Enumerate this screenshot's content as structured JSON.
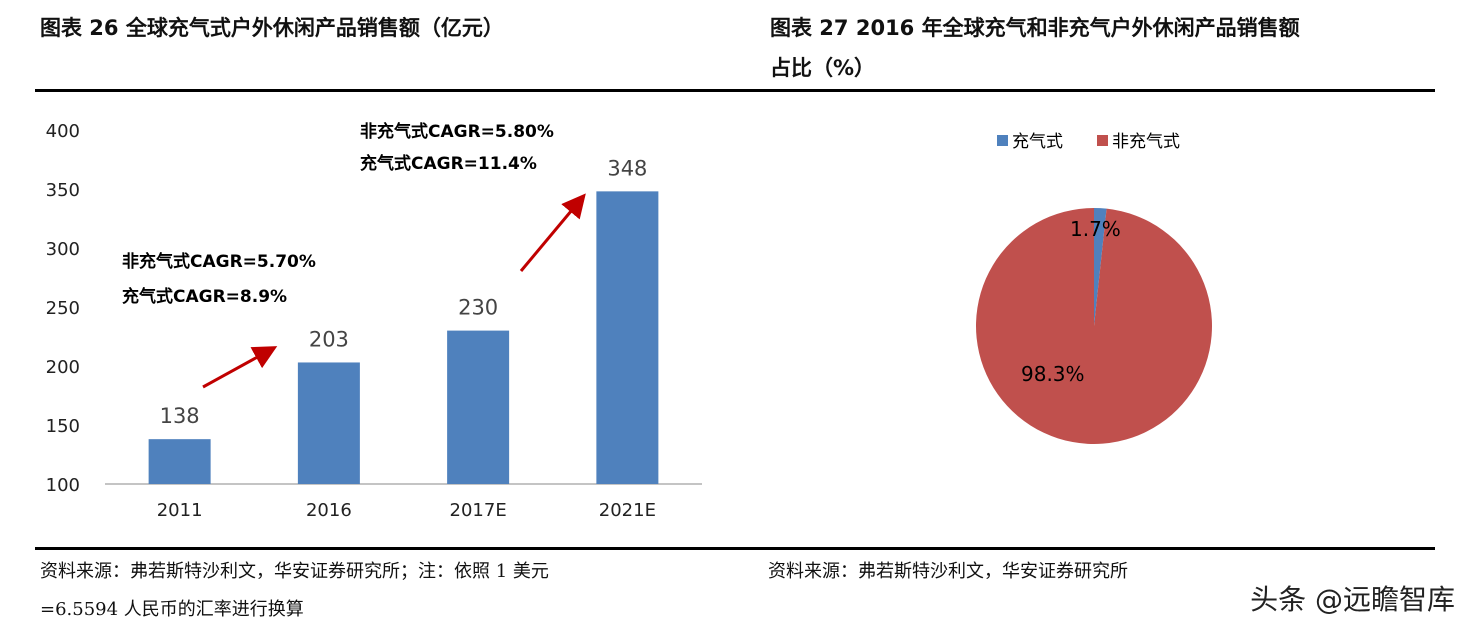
{
  "titles": {
    "left": "图表 26  全球充气式户外休闲产品销售额（亿元）",
    "right_line1": "图表 27  2016 年全球充气和非充气户外休闲产品销售额",
    "right_line2": "占比（%）"
  },
  "notes": {
    "left_line1": "资料来源：弗若斯特沙利文，华安证券研究所；注：依照 1 美元",
    "left_line2": "=6.5594 人民币的汇率进行换算",
    "right": "资料来源：弗若斯特沙利文，华安证券研究所"
  },
  "watermark": "头条 @远瞻智库",
  "chart_data": [
    {
      "type": "bar",
      "categories": [
        "2011",
        "2016",
        "2017E",
        "2021E"
      ],
      "values": [
        138,
        203,
        230,
        348
      ],
      "ylim": [
        100,
        400
      ],
      "yticks": [
        "100",
        "150",
        "200",
        "250",
        "300",
        "350",
        "400"
      ],
      "data_labels": [
        "138",
        "203",
        "230",
        "348"
      ],
      "grid": false,
      "color": "#4F81BD",
      "annotations": [
        {
          "line1": "非充气式CAGR=5.70%",
          "line2": "充气式CAGR=8.9%"
        },
        {
          "line1": "非充气式CAGR=5.80%",
          "line2": "充气式CAGR=11.4%"
        }
      ],
      "arrow_color": "#C00000"
    },
    {
      "type": "pie",
      "labels": [
        "充气式",
        "非充气式"
      ],
      "values": [
        1.7,
        98.3
      ],
      "data_labels": [
        "1.7%",
        "98.3%"
      ],
      "colors": [
        "#4F81BD",
        "#C0504D"
      ],
      "legend": "top"
    }
  ]
}
